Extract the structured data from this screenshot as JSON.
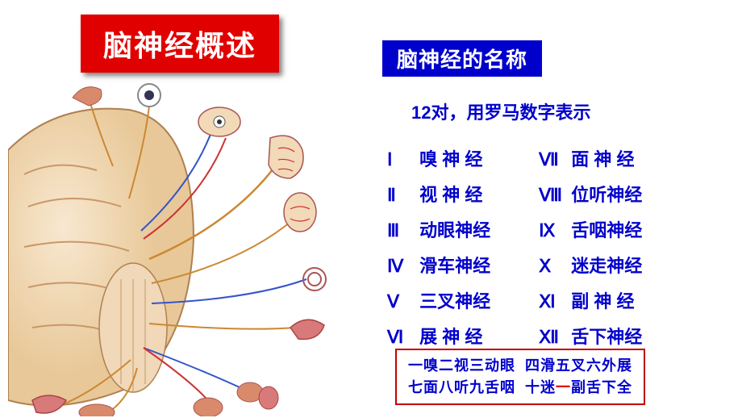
{
  "title": "脑神经概述",
  "subtitle": "脑神经的名称",
  "caption": "12对，用罗马数字表示",
  "nerves_left": [
    {
      "roman": "Ⅰ",
      "name": "嗅 神 经"
    },
    {
      "roman": "Ⅱ",
      "name": "视 神 经"
    },
    {
      "roman": "Ⅲ",
      "name": "动眼神经"
    },
    {
      "roman": "Ⅳ",
      "name": "滑车神经"
    },
    {
      "roman": "Ⅴ",
      "name": "三叉神经"
    },
    {
      "roman": "Ⅵ",
      "name": "展 神 经"
    }
  ],
  "nerves_right": [
    {
      "roman": "Ⅶ",
      "name": "面 神 经"
    },
    {
      "roman": "Ⅷ",
      "name": "位听神经"
    },
    {
      "roman": "Ⅸ",
      "name": "舌咽神经"
    },
    {
      "roman": "Ⅹ",
      "name": "迷走神经"
    },
    {
      "roman": "Ⅺ",
      "name": "副 神 经"
    },
    {
      "roman": "Ⅻ",
      "name": "舌下神经"
    }
  ],
  "mnemonic": {
    "line1a": "一嗅二视三动眼",
    "line1b": "四滑五叉六外展",
    "line2a": "七面八听九舌咽",
    "line2b_pre": "十迷",
    "line2b_red": "一",
    "line2b_post": "副舌下全"
  },
  "colors": {
    "title_bg": "#e00000",
    "title_fg": "#ffffff",
    "subtitle_bg": "#0000cc",
    "text_blue": "#0000cc",
    "box_border": "#c00000",
    "mnemonic_red": "#e00000",
    "brain_fill": "#f2d9b8",
    "brain_stroke": "#b08050",
    "organ_fill": "#d98a6a",
    "nerve_blue": "#3355cc",
    "nerve_red": "#cc3333"
  }
}
